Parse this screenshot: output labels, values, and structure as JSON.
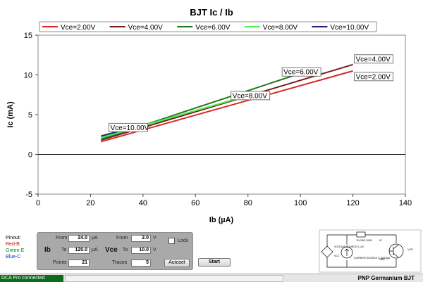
{
  "chart_data": {
    "type": "line",
    "title": "BJT Ic / Ib",
    "xlabel": "Ib (µA)",
    "ylabel": "Ic (mA)",
    "xlim": [
      0,
      140
    ],
    "ylim": [
      -5,
      15
    ],
    "xticks": [
      0,
      20,
      40,
      60,
      80,
      100,
      120,
      140
    ],
    "yticks": [
      -5,
      0,
      5,
      10,
      15
    ],
    "legend_position": "top",
    "grid": false,
    "series": [
      {
        "name": "Vce=2.00V",
        "color": "#d42a2a",
        "x": [
          24,
          120
        ],
        "y": [
          1.6,
          10.5
        ],
        "annotation": "Vce=2.00V"
      },
      {
        "name": "Vce=4.00V",
        "color": "#7a1c1c",
        "x": [
          24,
          120
        ],
        "y": [
          1.8,
          11.3
        ],
        "annotation": "Vce=4.00V"
      },
      {
        "name": "Vce=6.00V",
        "color": "#1f7a1f",
        "x": [
          24,
          100
        ],
        "y": [
          1.9,
          10.2
        ],
        "annotation": "Vce=6.00V"
      },
      {
        "name": "Vce=8.00V",
        "color": "#4ff04f",
        "x": [
          24,
          80
        ],
        "y": [
          2.1,
          7.4
        ],
        "annotation": "Vce=8.00V"
      },
      {
        "name": "Vce=10.00V",
        "color": "#1a237e",
        "x": [
          24,
          34
        ],
        "y": [
          2.3,
          3.2
        ],
        "annotation": "Vce=10.00V"
      }
    ]
  },
  "controls": {
    "ib_label": "Ib",
    "vce_label": "Vce",
    "from_label": "From",
    "to_label": "To",
    "points_label": "Points",
    "traces_label": "Traces",
    "ib_from": "24.0",
    "ib_to": "120.0",
    "ib_unit": "µA",
    "points": "21",
    "vce_from": "2.0",
    "vce_to": "10.0",
    "vce_unit": "V",
    "traces": "5",
    "lock_label": "Lock",
    "autoset_label": "Autoset",
    "start_label": "Start"
  },
  "pinout": {
    "title": "Pinout:",
    "red": "Red-B",
    "green": "Green-E",
    "blue": "Blue-C",
    "red_color": "#cc0000",
    "green_color": "#008a00",
    "blue_color": "#0033cc"
  },
  "status": {
    "connection": "DCA Pro connected",
    "device": "PNP Germanium BJT"
  },
  "schematic": {
    "voltage_source": "VOLTAGE SOURCE 0-12V",
    "vcc": "VCC",
    "rload": "RLOAD 100Ω",
    "current_source": "CURRENT SOURCE 0-10000µA",
    "ic": "IC",
    "vbe": "VBE",
    "vce": "VCE"
  }
}
